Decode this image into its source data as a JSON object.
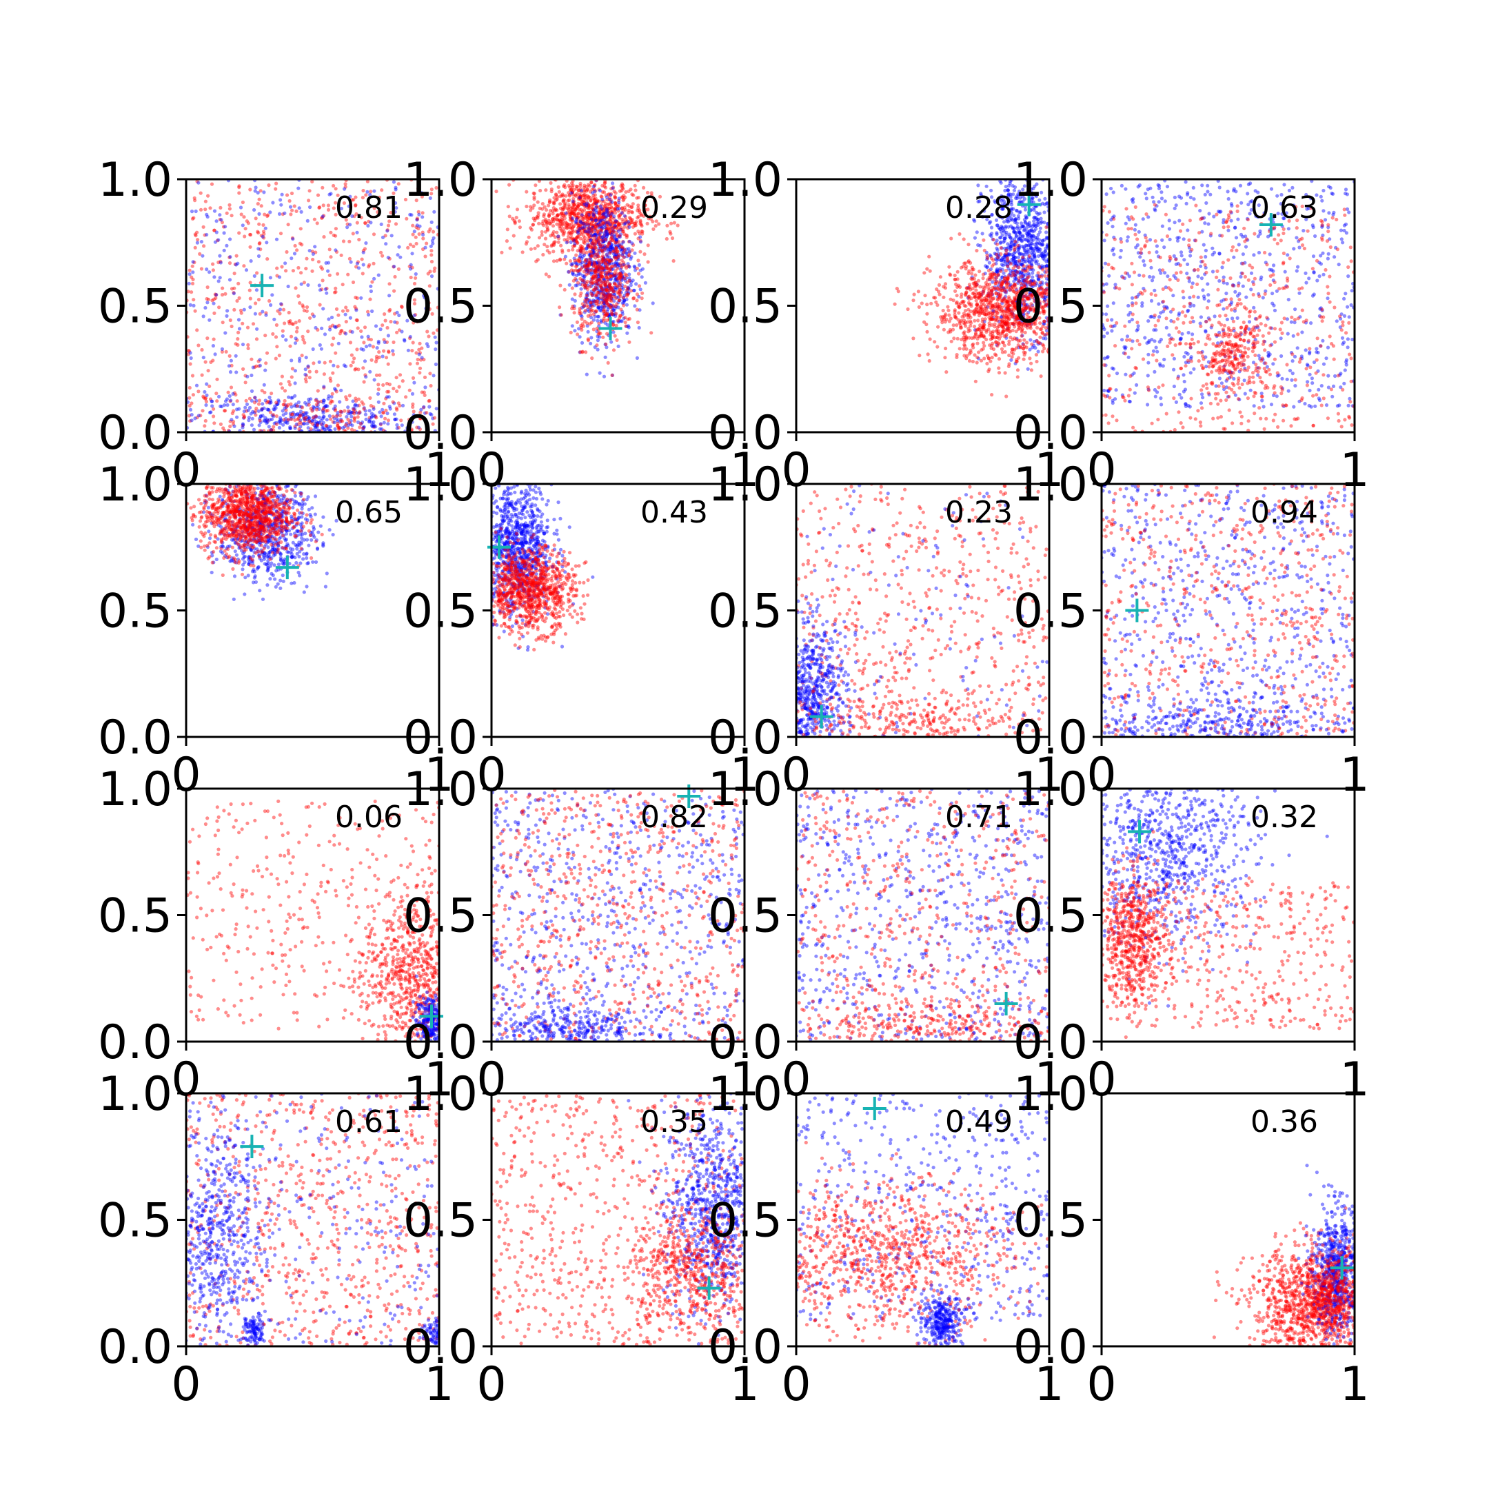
{
  "chart_data": {
    "type": "scatter",
    "layout": {
      "rows": 4,
      "cols": 4
    },
    "xlim": [
      0,
      1
    ],
    "ylim": [
      0,
      1
    ],
    "x_ticks": [
      "0",
      "1"
    ],
    "y_ticks": [
      "0.0",
      "0.5",
      "1.0"
    ],
    "colors": {
      "series_a": "#0000ff",
      "series_b": "#ff0000",
      "marker": "#17b3b3",
      "axes": "#000000"
    },
    "series_style": "dense point clouds (blue and red), one cyan '+' marker per panel",
    "panels": [
      {
        "score": "0.81",
        "marker": [
          0.3,
          0.58
        ],
        "clusters": [
          {
            "color": "red",
            "shape": "uniform",
            "cx": 0.5,
            "cy": 0.5,
            "sx": 0.5,
            "sy": 0.5,
            "n": 650
          },
          {
            "color": "blue",
            "shape": "uniform",
            "cx": 0.5,
            "cy": 0.5,
            "sx": 0.5,
            "sy": 0.5,
            "n": 350
          },
          {
            "color": "blue",
            "shape": "gauss",
            "cx": 0.45,
            "cy": 0.05,
            "sx": 0.22,
            "sy": 0.05,
            "n": 350
          },
          {
            "color": "red",
            "shape": "gauss",
            "cx": 0.55,
            "cy": 0.06,
            "sx": 0.25,
            "sy": 0.06,
            "n": 150
          }
        ]
      },
      {
        "score": "0.29",
        "marker": [
          0.47,
          0.41
        ],
        "clusters": [
          {
            "color": "red",
            "shape": "gauss",
            "cx": 0.38,
            "cy": 0.85,
            "sx": 0.12,
            "sy": 0.08,
            "n": 900
          },
          {
            "color": "blue",
            "shape": "gauss",
            "cx": 0.44,
            "cy": 0.65,
            "sx": 0.06,
            "sy": 0.14,
            "n": 700
          },
          {
            "color": "red",
            "shape": "gauss",
            "cx": 0.44,
            "cy": 0.6,
            "sx": 0.06,
            "sy": 0.12,
            "n": 500
          }
        ]
      },
      {
        "score": "0.28",
        "marker": [
          0.92,
          0.9
        ],
        "clusters": [
          {
            "color": "blue",
            "shape": "gauss",
            "cx": 0.9,
            "cy": 0.72,
            "sx": 0.08,
            "sy": 0.16,
            "n": 900
          },
          {
            "color": "red",
            "shape": "gauss",
            "cx": 0.82,
            "cy": 0.48,
            "sx": 0.14,
            "sy": 0.1,
            "n": 1100
          }
        ]
      },
      {
        "score": "0.63",
        "marker": [
          0.67,
          0.82
        ],
        "clusters": [
          {
            "color": "blue",
            "shape": "uniform",
            "cx": 0.5,
            "cy": 0.55,
            "sx": 0.5,
            "sy": 0.45,
            "n": 700
          },
          {
            "color": "red",
            "shape": "uniform",
            "cx": 0.5,
            "cy": 0.45,
            "sx": 0.5,
            "sy": 0.45,
            "n": 450
          },
          {
            "color": "red",
            "shape": "gauss",
            "cx": 0.52,
            "cy": 0.32,
            "sx": 0.07,
            "sy": 0.08,
            "n": 250
          }
        ]
      },
      {
        "score": "0.65",
        "marker": [
          0.4,
          0.67
        ],
        "clusters": [
          {
            "color": "blue",
            "shape": "gauss",
            "cx": 0.32,
            "cy": 0.82,
            "sx": 0.1,
            "sy": 0.1,
            "n": 700
          },
          {
            "color": "red",
            "shape": "gauss",
            "cx": 0.24,
            "cy": 0.88,
            "sx": 0.09,
            "sy": 0.08,
            "n": 1000
          }
        ]
      },
      {
        "score": "0.43",
        "marker": [
          0.03,
          0.75
        ],
        "clusters": [
          {
            "color": "blue",
            "shape": "gauss",
            "cx": 0.1,
            "cy": 0.75,
            "sx": 0.07,
            "sy": 0.13,
            "n": 900
          },
          {
            "color": "red",
            "shape": "gauss",
            "cx": 0.15,
            "cy": 0.58,
            "sx": 0.09,
            "sy": 0.08,
            "n": 900
          }
        ]
      },
      {
        "score": "0.23",
        "marker": [
          0.1,
          0.08
        ],
        "clusters": [
          {
            "color": "red",
            "shape": "uniform",
            "cx": 0.5,
            "cy": 0.5,
            "sx": 0.5,
            "sy": 0.5,
            "n": 550
          },
          {
            "color": "blue",
            "shape": "gauss",
            "cx": 0.06,
            "cy": 0.16,
            "sx": 0.07,
            "sy": 0.14,
            "n": 650
          },
          {
            "color": "blue",
            "shape": "uniform",
            "cx": 0.5,
            "cy": 0.5,
            "sx": 0.5,
            "sy": 0.5,
            "n": 120
          },
          {
            "color": "red",
            "shape": "gauss",
            "cx": 0.4,
            "cy": 0.06,
            "sx": 0.3,
            "sy": 0.05,
            "n": 250
          }
        ]
      },
      {
        "score": "0.94",
        "marker": [
          0.14,
          0.5
        ],
        "clusters": [
          {
            "color": "blue",
            "shape": "uniform",
            "cx": 0.5,
            "cy": 0.5,
            "sx": 0.5,
            "sy": 0.5,
            "n": 600
          },
          {
            "color": "red",
            "shape": "uniform",
            "cx": 0.5,
            "cy": 0.5,
            "sx": 0.5,
            "sy": 0.5,
            "n": 550
          },
          {
            "color": "blue",
            "shape": "gauss",
            "cx": 0.4,
            "cy": 0.05,
            "sx": 0.25,
            "sy": 0.05,
            "n": 300
          }
        ]
      },
      {
        "score": "0.06",
        "marker": [
          0.97,
          0.1
        ],
        "clusters": [
          {
            "color": "red",
            "shape": "uniform",
            "cx": 0.5,
            "cy": 0.5,
            "sx": 0.5,
            "sy": 0.45,
            "n": 350
          },
          {
            "color": "red",
            "shape": "gauss",
            "cx": 0.9,
            "cy": 0.25,
            "sx": 0.1,
            "sy": 0.18,
            "n": 700
          },
          {
            "color": "blue",
            "shape": "gauss",
            "cx": 0.97,
            "cy": 0.08,
            "sx": 0.03,
            "sy": 0.05,
            "n": 250
          }
        ]
      },
      {
        "score": "0.82",
        "marker": [
          0.78,
          0.97
        ],
        "clusters": [
          {
            "color": "blue",
            "shape": "uniform",
            "cx": 0.5,
            "cy": 0.5,
            "sx": 0.5,
            "sy": 0.5,
            "n": 600
          },
          {
            "color": "red",
            "shape": "uniform",
            "cx": 0.5,
            "cy": 0.5,
            "sx": 0.5,
            "sy": 0.5,
            "n": 650
          },
          {
            "color": "blue",
            "shape": "gauss",
            "cx": 0.3,
            "cy": 0.05,
            "sx": 0.18,
            "sy": 0.04,
            "n": 300
          }
        ]
      },
      {
        "score": "0.71",
        "marker": [
          0.83,
          0.15
        ],
        "clusters": [
          {
            "color": "blue",
            "shape": "uniform",
            "cx": 0.5,
            "cy": 0.5,
            "sx": 0.5,
            "sy": 0.5,
            "n": 650
          },
          {
            "color": "red",
            "shape": "uniform",
            "cx": 0.5,
            "cy": 0.5,
            "sx": 0.5,
            "sy": 0.5,
            "n": 500
          },
          {
            "color": "red",
            "shape": "gauss",
            "cx": 0.6,
            "cy": 0.07,
            "sx": 0.3,
            "sy": 0.05,
            "n": 250
          }
        ]
      },
      {
        "score": "0.32",
        "marker": [
          0.15,
          0.83
        ],
        "clusters": [
          {
            "color": "blue",
            "shape": "gauss",
            "cx": 0.25,
            "cy": 0.75,
            "sx": 0.18,
            "sy": 0.18,
            "n": 800
          },
          {
            "color": "red",
            "shape": "gauss",
            "cx": 0.12,
            "cy": 0.4,
            "sx": 0.07,
            "sy": 0.13,
            "n": 600
          },
          {
            "color": "red",
            "shape": "uniform",
            "cx": 0.55,
            "cy": 0.35,
            "sx": 0.45,
            "sy": 0.3,
            "n": 400
          }
        ]
      },
      {
        "score": "0.61",
        "marker": [
          0.26,
          0.79
        ],
        "clusters": [
          {
            "color": "red",
            "shape": "uniform",
            "cx": 0.5,
            "cy": 0.5,
            "sx": 0.5,
            "sy": 0.5,
            "n": 700
          },
          {
            "color": "blue",
            "shape": "uniform",
            "cx": 0.5,
            "cy": 0.5,
            "sx": 0.5,
            "sy": 0.5,
            "n": 250
          },
          {
            "color": "blue",
            "shape": "gauss",
            "cx": 0.12,
            "cy": 0.45,
            "sx": 0.09,
            "sy": 0.2,
            "n": 500
          },
          {
            "color": "blue",
            "shape": "gauss",
            "cx": 0.27,
            "cy": 0.06,
            "sx": 0.02,
            "sy": 0.03,
            "n": 100
          },
          {
            "color": "blue",
            "shape": "gauss",
            "cx": 0.98,
            "cy": 0.05,
            "sx": 0.02,
            "sy": 0.03,
            "n": 60
          }
        ]
      },
      {
        "score": "0.35",
        "marker": [
          0.86,
          0.23
        ],
        "clusters": [
          {
            "color": "red",
            "shape": "uniform",
            "cx": 0.5,
            "cy": 0.5,
            "sx": 0.5,
            "sy": 0.5,
            "n": 650
          },
          {
            "color": "blue",
            "shape": "gauss",
            "cx": 0.88,
            "cy": 0.55,
            "sx": 0.1,
            "sy": 0.2,
            "n": 800
          },
          {
            "color": "red",
            "shape": "gauss",
            "cx": 0.78,
            "cy": 0.3,
            "sx": 0.12,
            "sy": 0.12,
            "n": 500
          }
        ]
      },
      {
        "score": "0.49",
        "marker": [
          0.31,
          0.94
        ],
        "clusters": [
          {
            "color": "blue",
            "shape": "uniform",
            "cx": 0.5,
            "cy": 0.55,
            "sx": 0.5,
            "sy": 0.45,
            "n": 500
          },
          {
            "color": "red",
            "shape": "gauss",
            "cx": 0.35,
            "cy": 0.35,
            "sx": 0.25,
            "sy": 0.15,
            "n": 900
          },
          {
            "color": "blue",
            "shape": "gauss",
            "cx": 0.58,
            "cy": 0.1,
            "sx": 0.04,
            "sy": 0.05,
            "n": 300
          }
        ]
      },
      {
        "score": "0.36",
        "marker": [
          0.95,
          0.31
        ],
        "clusters": [
          {
            "color": "red",
            "shape": "gauss",
            "cx": 0.82,
            "cy": 0.15,
            "sx": 0.12,
            "sy": 0.12,
            "n": 1000
          },
          {
            "color": "blue",
            "shape": "gauss",
            "cx": 0.93,
            "cy": 0.3,
            "sx": 0.05,
            "sy": 0.13,
            "n": 600
          },
          {
            "color": "red",
            "shape": "gauss",
            "cx": 0.92,
            "cy": 0.22,
            "sx": 0.06,
            "sy": 0.08,
            "n": 400
          }
        ]
      }
    ]
  }
}
